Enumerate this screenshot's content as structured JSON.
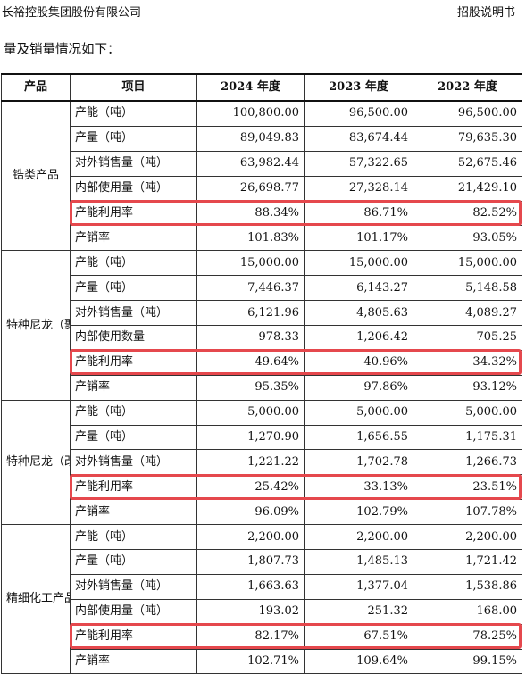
{
  "header": {
    "company": "长裕控股集团股份有限公司",
    "doc_type": "招股说明书"
  },
  "intro": "量及销量情况如下：",
  "table": {
    "columns": [
      "产品",
      "项目",
      "2024 年度",
      "2023 年度",
      "2022 年度"
    ],
    "groups": [
      {
        "product": "锆类产品",
        "rows": [
          {
            "item": "产能（吨）",
            "v2024": "100,800.00",
            "v2023": "96,500.00",
            "v2022": "96,500.00"
          },
          {
            "item": "产量（吨）",
            "v2024": "89,049.83",
            "v2023": "83,674.44",
            "v2022": "79,635.30"
          },
          {
            "item": "对外销售量（吨）",
            "v2024": "63,982.44",
            "v2023": "57,322.65",
            "v2022": "52,675.46"
          },
          {
            "item": "内部使用量（吨）",
            "v2024": "26,698.77",
            "v2023": "27,328.14",
            "v2022": "21,429.10"
          },
          {
            "item": "产能利用率",
            "v2024": "88.34%",
            "v2023": "86.71%",
            "v2022": "82.52%"
          },
          {
            "item": "产销率",
            "v2024": "101.83%",
            "v2023": "101.17%",
            "v2022": "93.05%"
          }
        ]
      },
      {
        "product": "特种尼龙（聚合）",
        "rows": [
          {
            "item": "产能（吨）",
            "v2024": "15,000.00",
            "v2023": "15,000.00",
            "v2022": "15,000.00"
          },
          {
            "item": "产量（吨）",
            "v2024": "7,446.37",
            "v2023": "6,143.27",
            "v2022": "5,148.58"
          },
          {
            "item": "对外销售量（吨）",
            "v2024": "6,121.96",
            "v2023": "4,805.63",
            "v2022": "4,089.27"
          },
          {
            "item": "内部使用数量",
            "v2024": "978.33",
            "v2023": "1,206.42",
            "v2022": "705.25"
          },
          {
            "item": "产能利用率",
            "v2024": "49.64%",
            "v2023": "40.96%",
            "v2022": "34.32%"
          },
          {
            "item": "产销率",
            "v2024": "95.35%",
            "v2023": "97.86%",
            "v2022": "93.12%"
          }
        ]
      },
      {
        "product": "特种尼龙（改性）",
        "rows": [
          {
            "item": "产能（吨）",
            "v2024": "5,000.00",
            "v2023": "5,000.00",
            "v2022": "5,000.00"
          },
          {
            "item": "产量（吨）",
            "v2024": "1,270.90",
            "v2023": "1,656.55",
            "v2022": "1,175.31"
          },
          {
            "item": "对外销售量（吨）",
            "v2024": "1,221.22",
            "v2023": "1,702.78",
            "v2022": "1,266.73"
          },
          {
            "item": "产能利用率",
            "v2024": "25.42%",
            "v2023": "33.13%",
            "v2022": "23.51%"
          },
          {
            "item": "产销率",
            "v2024": "96.09%",
            "v2023": "102.79%",
            "v2022": "107.78%"
          }
        ]
      },
      {
        "product": "精细化工产品",
        "rows": [
          {
            "item": "产能（吨）",
            "v2024": "2,200.00",
            "v2023": "2,200.00",
            "v2022": "2,200.00"
          },
          {
            "item": "产量（吨）",
            "v2024": "1,807.73",
            "v2023": "1,485.13",
            "v2022": "1,721.42"
          },
          {
            "item": "对外销售量（吨）",
            "v2024": "1,663.63",
            "v2023": "1,377.04",
            "v2022": "1,538.86"
          },
          {
            "item": "内部使用量（吨）",
            "v2024": "193.02",
            "v2023": "251.32",
            "v2022": "168.00"
          },
          {
            "item": "产能利用率",
            "v2024": "82.17%",
            "v2023": "67.51%",
            "v2022": "78.25%"
          },
          {
            "item": "产销率",
            "v2024": "102.71%",
            "v2023": "109.64%",
            "v2022": "99.15%"
          }
        ]
      }
    ]
  }
}
